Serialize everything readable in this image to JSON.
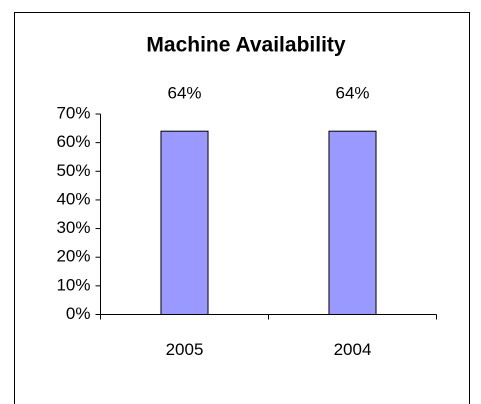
{
  "chart_data": {
    "type": "bar",
    "title": "Machine Availability",
    "categories": [
      "2005",
      "2004"
    ],
    "values": [
      64,
      64
    ],
    "value_labels": [
      "64%",
      "64%"
    ],
    "color": "#9999ff",
    "ylim": [
      0,
      70
    ],
    "yticks": [
      {
        "value": 0,
        "label": "0%"
      },
      {
        "value": 10,
        "label": "10%"
      },
      {
        "value": 20,
        "label": "20%"
      },
      {
        "value": 30,
        "label": "30%"
      },
      {
        "value": 40,
        "label": "40%"
      },
      {
        "value": 50,
        "label": "50%"
      },
      {
        "value": 60,
        "label": "60%"
      },
      {
        "value": 70,
        "label": "70%"
      }
    ],
    "grid": false
  }
}
